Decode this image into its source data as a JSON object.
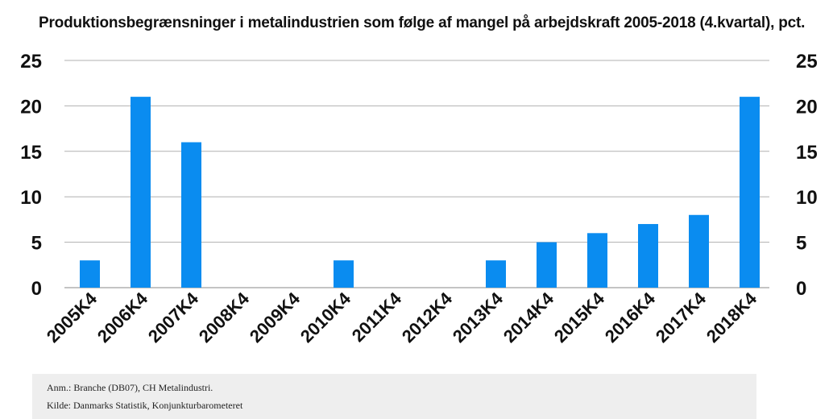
{
  "colors": {
    "bar": "#0a8cf0",
    "grid": "#b0b0b0",
    "text": "#111111",
    "note_bg": "#eeeeee"
  },
  "chart_data": {
    "type": "bar",
    "title": "Produktionsbegrænsninger i metalindustrien som følge af mangel på arbejdskraft 2005-2018 (4.kvartal), pct.",
    "xlabel": "",
    "ylabel": "",
    "categories": [
      "2005K4",
      "2006K4",
      "2007K4",
      "2008K4",
      "2009K4",
      "2010K4",
      "2011K4",
      "2012K4",
      "2013K4",
      "2014K4",
      "2015K4",
      "2016K4",
      "2017K4",
      "2018K4"
    ],
    "values": [
      3,
      21,
      16,
      0,
      0,
      3,
      0,
      0,
      3,
      5,
      6,
      7,
      8,
      21
    ],
    "ylim": [
      0,
      25
    ],
    "yticks": [
      0,
      5,
      10,
      15,
      20,
      25
    ],
    "grid": true,
    "dual_y_axis": true
  },
  "notes": {
    "anm": "Anm.: Branche (DB07), CH Metalindustri.",
    "kilde": "Kilde: Danmarks Statistik, Konjunkturbarometeret"
  }
}
